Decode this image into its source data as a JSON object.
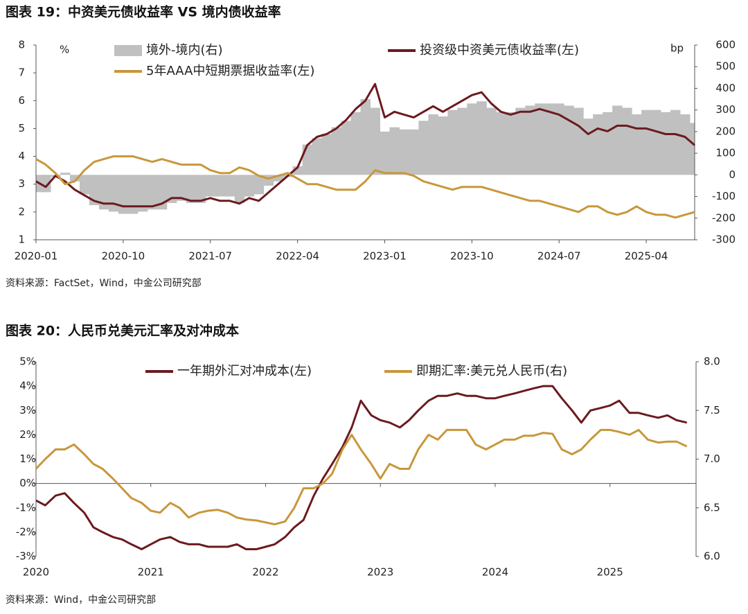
{
  "chart_data": [
    {
      "type": "line",
      "title": "图表 19：中资美元债收益率 VS 境内债收益率",
      "source": "资料来源：FactSet，Wind，中金公司研究部",
      "y_unit": "%",
      "y2_unit": "bp",
      "x": [
        "2020-01",
        "2020-02",
        "2020-03",
        "2020-04",
        "2020-05",
        "2020-06",
        "2020-07",
        "2020-08",
        "2020-09",
        "2020-10",
        "2020-11",
        "2020-12",
        "2021-01",
        "2021-02",
        "2021-03",
        "2021-04",
        "2021-05",
        "2021-06",
        "2021-07",
        "2021-08",
        "2021-09",
        "2021-10",
        "2021-11",
        "2021-12",
        "2022-01",
        "2022-02",
        "2022-03",
        "2022-04",
        "2022-05",
        "2022-06",
        "2022-07",
        "2022-08",
        "2022-09",
        "2022-10",
        "2022-11",
        "2022-12",
        "2023-01",
        "2023-02",
        "2023-03",
        "2023-04",
        "2023-05",
        "2023-06",
        "2023-07",
        "2023-08",
        "2023-09",
        "2023-10",
        "2023-11",
        "2023-12",
        "2024-01",
        "2024-02",
        "2024-03",
        "2024-04",
        "2024-05",
        "2024-06",
        "2024-07",
        "2024-08",
        "2024-09",
        "2024-10",
        "2024-11",
        "2024-12",
        "2025-01",
        "2025-02",
        "2025-03",
        "2025-04",
        "2025-05",
        "2025-06",
        "2025-07",
        "2025-08",
        "2025-09"
      ],
      "xticks": [
        "2020-01",
        "2020-10",
        "2021-07",
        "2022-04",
        "2023-01",
        "2023-10",
        "2024-07",
        "2025-04"
      ],
      "ylim": [
        1,
        8
      ],
      "yticks": [
        1,
        2,
        3,
        4,
        5,
        6,
        7,
        8
      ],
      "y2lim": [
        -300,
        600
      ],
      "y2ticks": [
        -300,
        -200,
        -100,
        0,
        100,
        200,
        300,
        400,
        500,
        600
      ],
      "series": [
        {
          "name": "境外-境内(右)",
          "type": "bar",
          "axis": "y2",
          "color": "#c0c0c0",
          "values": [
            -80,
            -80,
            -10,
            10,
            -30,
            -90,
            -140,
            -160,
            -170,
            -180,
            -180,
            -170,
            -160,
            -160,
            -130,
            -120,
            -130,
            -130,
            -100,
            -100,
            -100,
            -130,
            -100,
            -90,
            -50,
            -30,
            -10,
            40,
            140,
            170,
            190,
            220,
            250,
            290,
            350,
            310,
            200,
            220,
            210,
            210,
            250,
            280,
            270,
            300,
            310,
            330,
            340,
            310,
            290,
            290,
            310,
            320,
            330,
            330,
            330,
            320,
            310,
            260,
            280,
            290,
            320,
            310,
            280,
            300,
            300,
            290,
            300,
            280,
            240
          ]
        },
        {
          "name": "投资级中资美元债收益率(左)",
          "color": "#6b1a1f",
          "values": [
            3.1,
            2.9,
            3.3,
            3.1,
            2.8,
            2.6,
            2.4,
            2.3,
            2.3,
            2.2,
            2.2,
            2.2,
            2.2,
            2.3,
            2.5,
            2.5,
            2.4,
            2.4,
            2.5,
            2.4,
            2.4,
            2.3,
            2.5,
            2.4,
            2.7,
            3.0,
            3.3,
            3.6,
            4.4,
            4.7,
            4.8,
            5.0,
            5.3,
            5.7,
            6.0,
            6.6,
            5.4,
            5.6,
            5.5,
            5.4,
            5.6,
            5.8,
            5.6,
            5.8,
            6.0,
            6.2,
            6.3,
            5.9,
            5.6,
            5.5,
            5.6,
            5.6,
            5.7,
            5.6,
            5.5,
            5.3,
            5.1,
            4.8,
            5.0,
            4.9,
            5.1,
            5.1,
            5.0,
            5.0,
            4.9,
            4.8,
            4.8,
            4.7,
            4.4
          ]
        },
        {
          "name": "5年AAA中短期票据收益率(左)",
          "color": "#c8973a",
          "values": [
            3.9,
            3.7,
            3.4,
            3.0,
            3.1,
            3.5,
            3.8,
            3.9,
            4.0,
            4.0,
            4.0,
            3.9,
            3.8,
            3.9,
            3.8,
            3.7,
            3.7,
            3.7,
            3.5,
            3.4,
            3.4,
            3.6,
            3.5,
            3.3,
            3.2,
            3.3,
            3.4,
            3.2,
            3.0,
            3.0,
            2.9,
            2.8,
            2.8,
            2.8,
            3.1,
            3.5,
            3.4,
            3.4,
            3.4,
            3.3,
            3.1,
            3.0,
            2.9,
            2.8,
            2.9,
            2.9,
            2.9,
            2.8,
            2.7,
            2.6,
            2.5,
            2.4,
            2.4,
            2.3,
            2.2,
            2.1,
            2.0,
            2.2,
            2.2,
            2.0,
            1.9,
            2.0,
            2.2,
            2.0,
            1.9,
            1.9,
            1.8,
            1.9,
            2.0
          ]
        }
      ]
    },
    {
      "type": "line",
      "title": "图表 20：人民币兑美元汇率及对冲成本",
      "source": "资料来源：Wind，中金公司研究部",
      "x": [
        2020,
        2020.08,
        2020.17,
        2020.25,
        2020.33,
        2020.42,
        2020.5,
        2020.58,
        2020.67,
        2020.75,
        2020.83,
        2020.92,
        2021,
        2021.08,
        2021.17,
        2021.25,
        2021.33,
        2021.42,
        2021.5,
        2021.58,
        2021.67,
        2021.75,
        2021.83,
        2021.92,
        2022,
        2022.08,
        2022.17,
        2022.25,
        2022.33,
        2022.42,
        2022.5,
        2022.58,
        2022.67,
        2022.75,
        2022.83,
        2022.92,
        2023,
        2023.08,
        2023.17,
        2023.25,
        2023.33,
        2023.42,
        2023.5,
        2023.58,
        2023.67,
        2023.75,
        2023.83,
        2023.92,
        2024,
        2024.08,
        2024.17,
        2024.25,
        2024.33,
        2024.42,
        2024.5,
        2024.58,
        2024.67,
        2024.75,
        2024.83,
        2024.92,
        2025,
        2025.08,
        2025.17,
        2025.25,
        2025.33,
        2025.42,
        2025.5,
        2025.58,
        2025.67
      ],
      "xlim": [
        2020,
        2025.75
      ],
      "xticks": [
        2020,
        2021,
        2022,
        2023,
        2024,
        2025
      ],
      "ylim": [
        -3,
        5
      ],
      "yticks": [
        {
          "value": -3,
          "label": "-3%"
        },
        {
          "value": -2,
          "label": "-2%"
        },
        {
          "value": -1,
          "label": "-1%"
        },
        {
          "value": 0,
          "label": "0%"
        },
        {
          "value": 1,
          "label": "1%"
        },
        {
          "value": 2,
          "label": "2%"
        },
        {
          "value": 3,
          "label": "3%"
        },
        {
          "value": 4,
          "label": "4%"
        },
        {
          "value": 5,
          "label": "5%"
        }
      ],
      "y2lim": [
        6,
        8
      ],
      "y2ticks": [
        {
          "value": 6,
          "label": "6.0"
        },
        6.5,
        {
          "value": 7,
          "label": "7.0"
        },
        7.5,
        {
          "value": 8,
          "label": "8.0"
        }
      ],
      "series": [
        {
          "name": "一年期外汇对冲成本(左)",
          "color": "#6b1a1f",
          "values": [
            -0.7,
            -0.9,
            -0.5,
            -0.4,
            -0.8,
            -1.2,
            -1.8,
            -2.0,
            -2.2,
            -2.3,
            -2.5,
            -2.7,
            -2.5,
            -2.3,
            -2.2,
            -2.4,
            -2.5,
            -2.5,
            -2.6,
            -2.6,
            -2.6,
            -2.5,
            -2.7,
            -2.7,
            -2.6,
            -2.5,
            -2.2,
            -1.8,
            -1.5,
            -0.5,
            0.2,
            0.8,
            1.5,
            2.3,
            3.4,
            2.8,
            2.6,
            2.5,
            2.3,
            2.6,
            3.0,
            3.4,
            3.6,
            3.6,
            3.7,
            3.6,
            3.6,
            3.5,
            3.5,
            3.6,
            3.7,
            3.8,
            3.9,
            4.0,
            4.0,
            3.5,
            3.0,
            2.5,
            3.0,
            3.1,
            3.2,
            3.4,
            2.9,
            2.9,
            2.8,
            2.7,
            2.8,
            2.6,
            2.5
          ]
        },
        {
          "name": "即期汇率:美元兑人民币(右)",
          "axis": "y2",
          "color": "#c8973a",
          "values": [
            6.9,
            7.0,
            7.1,
            7.1,
            7.15,
            7.05,
            6.95,
            6.9,
            6.8,
            6.7,
            6.6,
            6.55,
            6.47,
            6.45,
            6.55,
            6.5,
            6.4,
            6.45,
            6.47,
            6.48,
            6.45,
            6.4,
            6.38,
            6.37,
            6.35,
            6.33,
            6.36,
            6.5,
            6.7,
            6.7,
            6.75,
            6.85,
            7.1,
            7.25,
            7.1,
            6.95,
            6.8,
            6.95,
            6.9,
            6.9,
            7.1,
            7.25,
            7.2,
            7.3,
            7.3,
            7.3,
            7.15,
            7.1,
            7.15,
            7.2,
            7.2,
            7.24,
            7.24,
            7.27,
            7.26,
            7.1,
            7.05,
            7.1,
            7.2,
            7.3,
            7.3,
            7.28,
            7.25,
            7.3,
            7.2,
            7.17,
            7.18,
            7.18,
            7.13
          ]
        }
      ]
    }
  ]
}
